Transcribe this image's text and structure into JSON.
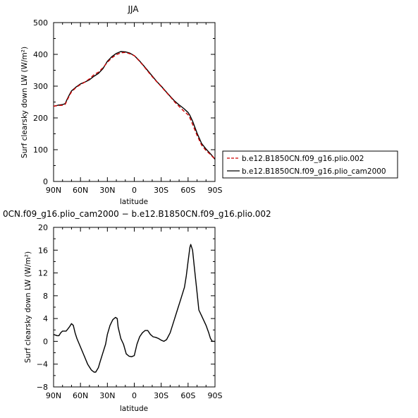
{
  "top_title": "JJA",
  "bottom_title": "0CN.f09_g16.plio_cam2000 − b.e12.B1850CN.f09_g16.plio.002",
  "legend": [
    {
      "label": "b.e12.B1850CN.f09_g16.plio.002",
      "color": "#cc0000",
      "dash": true
    },
    {
      "label": "b.e12.B1850CN.f09_g16.plio_cam2000",
      "color": "#000000",
      "dash": false
    }
  ],
  "chart_data": [
    {
      "type": "line",
      "title": "JJA",
      "xlabel": "latitude",
      "ylabel": "Surf clearsky down LW (W/m²)",
      "xlim": [
        90,
        -90
      ],
      "ylim": [
        0,
        500
      ],
      "xticks": [
        90,
        60,
        30,
        0,
        -30,
        -60,
        -90
      ],
      "xtick_labels": [
        "90N",
        "60N",
        "30N",
        "0",
        "30S",
        "60S",
        "90S"
      ],
      "yticks": [
        0,
        100,
        200,
        300,
        400,
        500
      ],
      "ytick_labels": [
        "0",
        "100",
        "200",
        "300",
        "400",
        "500"
      ],
      "series": [
        {
          "name": "b.e12.B1850CN.f09_g16.plio.002",
          "color": "#cc0000",
          "dash": true,
          "x": [
            90,
            85,
            80,
            77,
            75,
            72,
            70,
            67,
            65,
            60,
            55,
            50,
            45,
            40,
            35,
            30,
            25,
            20,
            15,
            10,
            5,
            0,
            -5,
            -10,
            -15,
            -20,
            -25,
            -30,
            -35,
            -40,
            -45,
            -50,
            -55,
            -60,
            -62,
            -65,
            -70,
            -75,
            -80,
            -85,
            -90
          ],
          "y": [
            237,
            239,
            240,
            243,
            255,
            272,
            282,
            290,
            296,
            305,
            313,
            323,
            336,
            344,
            358,
            375,
            389,
            399,
            405,
            406,
            402,
            396,
            381,
            365,
            347,
            330,
            314,
            299,
            283,
            267,
            250,
            236,
            222,
            210,
            200,
            180,
            145,
            115,
            97,
            85,
            70
          ]
        },
        {
          "name": "b.e12.B1850CN.f09_g16.plio_cam2000",
          "color": "#000000",
          "dash": false,
          "x": [
            90,
            85,
            80,
            77,
            75,
            72,
            70,
            67,
            65,
            60,
            55,
            50,
            45,
            40,
            35,
            30,
            25,
            20,
            15,
            10,
            5,
            0,
            -5,
            -10,
            -15,
            -20,
            -25,
            -30,
            -35,
            -40,
            -45,
            -50,
            -55,
            -60,
            -62,
            -65,
            -70,
            -75,
            -80,
            -85,
            -90
          ],
          "y": [
            237,
            240,
            242,
            245,
            258,
            275,
            285,
            292,
            297,
            307,
            313,
            320,
            331,
            340,
            355,
            378,
            393,
            403,
            409,
            408,
            404,
            396,
            382,
            366,
            349,
            332,
            315,
            300,
            284,
            268,
            253,
            241,
            230,
            217,
            208,
            190,
            152,
            120,
            102,
            87,
            70
          ]
        }
      ]
    },
    {
      "type": "line",
      "title": "0CN.f09_g16.plio_cam2000 − b.e12.B1850CN.f09_g16.plio.002",
      "xlabel": "latitude",
      "ylabel": "Surf clearsky down LW (W/m²)",
      "xlim": [
        90,
        -90
      ],
      "ylim": [
        -8,
        20
      ],
      "xticks": [
        90,
        60,
        30,
        0,
        -30,
        -60,
        -90
      ],
      "xtick_labels": [
        "90N",
        "60N",
        "30N",
        "0",
        "30S",
        "60S",
        "90S"
      ],
      "yticks": [
        -8,
        -4,
        0,
        4,
        8,
        12,
        16,
        20
      ],
      "ytick_labels": [
        "−8",
        "−4",
        "0",
        "4",
        "8",
        "12",
        "16",
        "20"
      ],
      "series": [
        {
          "color": "#000000",
          "dash": false,
          "x": [
            90,
            86,
            84,
            82,
            80,
            76,
            74,
            72,
            70,
            68,
            66,
            64,
            60,
            56,
            52,
            48,
            45,
            43,
            40,
            38,
            35,
            32,
            30,
            27,
            24,
            21,
            19,
            18,
            15,
            12,
            9,
            6,
            3,
            0,
            -3,
            -6,
            -9,
            -12,
            -15,
            -18,
            -21,
            -24,
            -27,
            -30,
            -33,
            -36,
            -40,
            -44,
            -48,
            -52,
            -56,
            -58,
            -60,
            -62,
            -63,
            -65,
            -67,
            -70,
            -72,
            -75,
            -78,
            -80,
            -83,
            -85,
            -87,
            -90
          ],
          "y": [
            1.2,
            1.0,
            1.0,
            1.5,
            1.8,
            1.8,
            2.2,
            2.6,
            3.1,
            2.8,
            1.5,
            0.5,
            -1.0,
            -2.5,
            -4.0,
            -5.0,
            -5.4,
            -5.4,
            -4.6,
            -3.5,
            -2.0,
            -0.5,
            1.2,
            2.8,
            3.8,
            4.2,
            4.0,
            2.5,
            0.5,
            -0.5,
            -2.2,
            -2.6,
            -2.7,
            -2.5,
            -0.5,
            0.8,
            1.5,
            1.9,
            1.9,
            1.2,
            0.8,
            0.7,
            0.5,
            0.2,
            0.0,
            0.3,
            1.5,
            3.5,
            5.5,
            7.5,
            9.5,
            11.5,
            14.0,
            16.5,
            17.0,
            16.0,
            13.0,
            8.5,
            5.5,
            4.5,
            3.5,
            2.8,
            1.5,
            0.5,
            0.0,
            0.0
          ]
        }
      ]
    }
  ]
}
